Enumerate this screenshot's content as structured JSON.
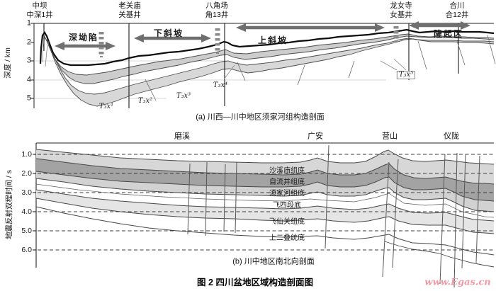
{
  "figure": {
    "number_caption": "图 2  四川盆地区域构造剖面图",
    "watermark": "www.Egas.cn"
  },
  "colors": {
    "band_light": "#d7d7d7",
    "band_dark": "#a3a3a3",
    "band_pale": "#e5e5e5",
    "arrow_gray": "#6f6f6f",
    "watermark_pink": "#f09aa6"
  },
  "panel_a": {
    "caption": "(a) 川西—川中地区须家河组构造剖面",
    "y_axis_title": "深度 / km",
    "ticks": [
      "1",
      "2",
      "3",
      "4",
      "5"
    ],
    "wells": [
      {
        "place": "中坝",
        "well": "中深1井"
      },
      {
        "place": "老关庙",
        "well": "关基井"
      },
      {
        "place": "八角场",
        "well": "角13井"
      },
      {
        "place": "龙女寺",
        "well": "女基井"
      },
      {
        "place": "合川",
        "well": "合12井"
      }
    ],
    "zones": [
      {
        "label": "深坳陷"
      },
      {
        "label": "下斜坡"
      },
      {
        "label": "上斜坡"
      },
      {
        "label": "隆起区"
      }
    ],
    "markers": [
      {
        "label": "T₃x¹"
      },
      {
        "label": "T₃x²"
      },
      {
        "label": "T₃x³"
      },
      {
        "label": "T₃x⁴"
      },
      {
        "label": "T₃x⁵"
      }
    ]
  },
  "panel_b": {
    "caption": "(b) 川中地区南北向剖面",
    "y_axis_title": "地震反射双程时间 / s",
    "ticks": [
      "1.0",
      "2.0",
      "3.0",
      "4.0",
      "5.0",
      "6.0"
    ],
    "locations": [
      {
        "label": "磨溪"
      },
      {
        "label": "广安"
      },
      {
        "label": "营山"
      },
      {
        "label": "仪陇"
      }
    ],
    "horizons": [
      {
        "label": "沙溪庙组底"
      },
      {
        "label": "自流井组底"
      },
      {
        "label": "须家河组底"
      },
      {
        "label": "飞四段底"
      },
      {
        "label": "飞仙关组底"
      },
      {
        "label": "上二叠统底"
      }
    ]
  }
}
